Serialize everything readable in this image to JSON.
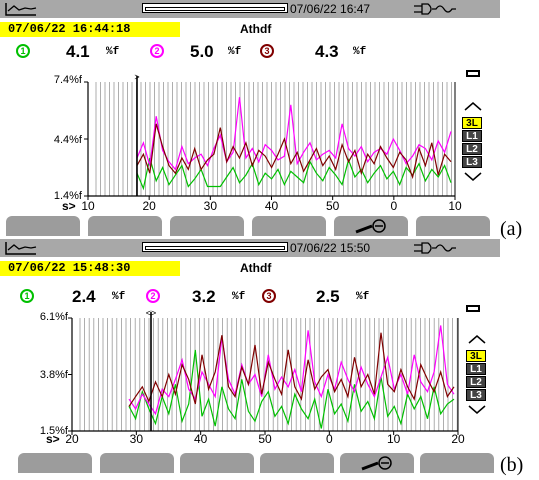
{
  "panels": [
    {
      "id": "a",
      "top": 0,
      "top_datetime": "07/06/22 16:47",
      "stamp": "07/06/22 16:44:18",
      "mode": "Athdf",
      "readings": [
        {
          "phase": "1",
          "value": "4.1",
          "unit": "%f",
          "color": "#00c000"
        },
        {
          "phase": "2",
          "value": "5.0",
          "unit": "%f",
          "color": "#ff00ff"
        },
        {
          "phase": "3",
          "value": "4.3",
          "unit": "%f",
          "color": "#800000"
        }
      ],
      "y_labels": [
        "7.4%f",
        "4.4%f",
        "1.4%f"
      ],
      "x_prefix": "s>",
      "x_ticks": [
        "10",
        "20",
        "30",
        "40",
        "50",
        "0",
        "10"
      ],
      "cursor_marker": ">",
      "selector": {
        "options": [
          "3L",
          "L1",
          "L2",
          "L3"
        ],
        "active": "3L"
      },
      "panel_label": "(a)"
    },
    {
      "id": "b",
      "top": 239,
      "top_datetime": "07/06/22 15:50",
      "stamp": "07/06/22 15:48:30",
      "mode": "Athdf",
      "readings": [
        {
          "phase": "1",
          "value": "2.4",
          "unit": "%f",
          "color": "#00c000"
        },
        {
          "phase": "2",
          "value": "3.2",
          "unit": "%f",
          "color": "#ff00ff"
        },
        {
          "phase": "3",
          "value": "2.5",
          "unit": "%f",
          "color": "#800000"
        }
      ],
      "y_labels": [
        "6.1%f",
        "3.8%f",
        "1.5%f"
      ],
      "x_prefix": "s>",
      "x_ticks": [
        "20",
        "30",
        "40",
        "50",
        "0",
        "10",
        "20"
      ],
      "cursor_marker": "<>",
      "selector": {
        "options": [
          "3L",
          "L1",
          "L2",
          "L3"
        ],
        "active": "3L"
      },
      "panel_label": "(b)"
    }
  ],
  "chart_data": [
    {
      "type": "line",
      "title": "Athdf",
      "ylim": [
        1.4,
        7.4
      ],
      "yticks": [
        "7.4%f",
        "4.4%f",
        "1.4%f"
      ],
      "xticks": [
        "10",
        "20",
        "30",
        "40",
        "50",
        "0",
        "10"
      ],
      "series": [
        {
          "name": "1",
          "color": "#00c000",
          "values": [
            2.6,
            1.8,
            3.4,
            2.2,
            2.9,
            2.0,
            2.5,
            3.0,
            1.9,
            2.3,
            2.8,
            1.9,
            1.9,
            1.9,
            2.4,
            2.9,
            2.1,
            2.5,
            3.1,
            2.0,
            2.6,
            2.3,
            2.8,
            2.0,
            2.7,
            2.4,
            2.1,
            3.2,
            2.6,
            2.2,
            2.9,
            2.5,
            2.0,
            3.3,
            2.4,
            2.8,
            2.1,
            2.6,
            3.0,
            2.3,
            2.7,
            2.0,
            2.9,
            2.5,
            3.1,
            2.2,
            2.8,
            2.4,
            3.0,
            2.1
          ]
        },
        {
          "name": "2",
          "color": "#ff00ff",
          "values": [
            3.4,
            4.2,
            3.0,
            5.6,
            3.8,
            3.2,
            2.8,
            4.0,
            3.1,
            3.4,
            3.6,
            3.0,
            3.9,
            4.6,
            3.2,
            3.7,
            6.6,
            3.4,
            3.9,
            3.2,
            4.1,
            3.8,
            3.3,
            3.5,
            6.2,
            3.1,
            3.7,
            4.2,
            3.3,
            3.6,
            3.8,
            3.4,
            5.2,
            3.9,
            3.5,
            4.0,
            3.2,
            3.7,
            3.9,
            3.6,
            4.4,
            3.8,
            3.1,
            3.5,
            4.1,
            3.9,
            3.3,
            4.3,
            3.7,
            4.8
          ]
        },
        {
          "name": "3",
          "color": "#800000",
          "values": [
            3.0,
            3.6,
            2.6,
            5.2,
            4.0,
            3.0,
            2.6,
            3.4,
            2.8,
            3.9,
            2.8,
            3.3,
            3.6,
            5.0,
            3.2,
            4.0,
            3.4,
            4.2,
            3.0,
            3.8,
            3.5,
            2.9,
            3.6,
            4.4,
            3.1,
            3.7,
            2.7,
            3.3,
            3.9,
            3.0,
            3.5,
            2.8,
            4.1,
            3.2,
            3.8,
            2.6,
            3.6,
            3.1,
            4.0,
            3.4,
            2.9,
            3.7,
            3.3,
            2.4,
            3.9,
            3.0,
            4.2,
            2.5,
            3.6,
            3.2
          ]
        }
      ]
    },
    {
      "type": "line",
      "title": "Athdf",
      "ylim": [
        1.5,
        6.1
      ],
      "yticks": [
        "6.1%f",
        "3.8%f",
        "1.5%f"
      ],
      "xticks": [
        "20",
        "30",
        "40",
        "50",
        "0",
        "10",
        "20"
      ],
      "series": [
        {
          "name": "1",
          "color": "#00c000",
          "values": [
            2.5,
            2.0,
            3.1,
            2.4,
            1.8,
            2.9,
            2.2,
            3.4,
            1.9,
            2.6,
            4.8,
            2.1,
            2.8,
            1.7,
            3.3,
            2.4,
            2.0,
            3.6,
            2.3,
            1.9,
            2.7,
            3.1,
            2.1,
            2.5,
            1.8,
            3.0,
            2.4,
            2.0,
            2.8,
            1.6,
            3.2,
            2.2,
            2.6,
            1.9,
            3.4,
            2.3,
            2.7,
            2.0,
            3.7,
            2.1,
            2.5,
            1.8,
            3.0,
            2.4,
            2.9,
            2.0,
            3.3,
            2.2,
            2.6,
            2.8
          ]
        },
        {
          "name": "2",
          "color": "#ff00ff",
          "values": [
            2.8,
            2.4,
            3.0,
            2.6,
            2.2,
            3.2,
            2.9,
            3.6,
            4.4,
            3.2,
            2.8,
            3.9,
            3.4,
            2.9,
            5.3,
            3.6,
            3.0,
            4.2,
            3.4,
            3.8,
            2.9,
            4.6,
            3.2,
            3.7,
            3.3,
            4.0,
            3.1,
            5.6,
            3.5,
            2.9,
            3.8,
            3.2,
            4.3,
            3.6,
            3.1,
            4.1,
            3.4,
            2.9,
            3.7,
            4.5,
            3.2,
            3.8,
            3.0,
            4.6,
            3.5,
            3.1,
            3.9,
            5.8,
            3.4,
            3.0
          ]
        },
        {
          "name": "3",
          "color": "#800000",
          "values": [
            2.5,
            2.9,
            3.3,
            2.7,
            3.5,
            2.9,
            3.8,
            3.0,
            4.2,
            3.6,
            2.6,
            4.6,
            3.2,
            3.9,
            5.4,
            3.3,
            2.9,
            4.1,
            3.4,
            5.0,
            3.0,
            4.3,
            3.6,
            3.0,
            4.8,
            3.3,
            2.8,
            4.4,
            3.2,
            3.7,
            4.0,
            3.1,
            3.6,
            2.9,
            4.5,
            3.3,
            3.8,
            3.0,
            5.5,
            3.4,
            3.1,
            4.0,
            3.3,
            2.8,
            4.2,
            3.6,
            3.1,
            3.9,
            2.9,
            3.3
          ]
        }
      ]
    }
  ]
}
